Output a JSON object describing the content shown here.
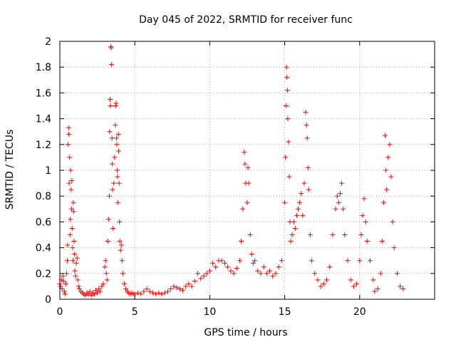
{
  "chart_data": {
    "type": "scatter",
    "title": "Day 045 of 2022, SRMTID for receiver func",
    "xlabel": "GPS time / hours",
    "ylabel": "SRMTID / TECUs",
    "xlim": [
      0,
      25
    ],
    "ylim": [
      0,
      2
    ],
    "xticks": [
      0,
      5,
      10,
      15,
      20
    ],
    "xtick_labels": [
      "0",
      "5",
      "10",
      "15",
      "20"
    ],
    "yticks": [
      0,
      0.2,
      0.4,
      0.6,
      0.8,
      1,
      1.2,
      1.4,
      1.6,
      1.8,
      2
    ],
    "ytick_labels": [
      "0",
      "0.2",
      "0.4",
      "0.6",
      "0.8",
      "1",
      "1.2",
      "1.4",
      "1.6",
      "1.8",
      "2"
    ],
    "grid": true,
    "marker": "+",
    "color": "#ff0000",
    "series": [
      {
        "name": "SRMTID",
        "points": [
          [
            0.0,
            0.12
          ],
          [
            0.05,
            0.1
          ],
          [
            0.1,
            0.15
          ],
          [
            0.15,
            0.08
          ],
          [
            0.2,
            0.18
          ],
          [
            0.25,
            0.14
          ],
          [
            0.3,
            0.06
          ],
          [
            0.35,
            0.04
          ],
          [
            0.4,
            0.12
          ],
          [
            0.45,
            0.2
          ],
          [
            0.5,
            0.3
          ],
          [
            0.52,
            0.42
          ],
          [
            0.55,
            1.2
          ],
          [
            0.58,
            1.33
          ],
          [
            0.6,
            1.28
          ],
          [
            0.62,
            0.9
          ],
          [
            0.65,
            1.1
          ],
          [
            0.68,
            0.5
          ],
          [
            0.7,
            0.62
          ],
          [
            0.72,
            1.0
          ],
          [
            0.75,
            0.85
          ],
          [
            0.78,
            0.7
          ],
          [
            0.8,
            0.92
          ],
          [
            0.82,
            0.55
          ],
          [
            0.85,
            0.4
          ],
          [
            0.88,
            0.3
          ],
          [
            0.9,
            0.75
          ],
          [
            0.92,
            0.68
          ],
          [
            0.95,
            0.45
          ],
          [
            0.98,
            0.35
          ],
          [
            1.0,
            0.22
          ],
          [
            1.05,
            0.18
          ],
          [
            1.1,
            0.28
          ],
          [
            1.15,
            0.32
          ],
          [
            1.2,
            0.15
          ],
          [
            1.25,
            0.1
          ],
          [
            1.3,
            0.08
          ],
          [
            1.4,
            0.06
          ],
          [
            1.5,
            0.05
          ],
          [
            1.6,
            0.04
          ],
          [
            1.7,
            0.03
          ],
          [
            1.8,
            0.05
          ],
          [
            1.9,
            0.04
          ],
          [
            2.0,
            0.06
          ],
          [
            2.1,
            0.03
          ],
          [
            2.2,
            0.05
          ],
          [
            2.3,
            0.04
          ],
          [
            2.4,
            0.07
          ],
          [
            2.5,
            0.05
          ],
          [
            2.6,
            0.08
          ],
          [
            2.7,
            0.06
          ],
          [
            2.8,
            0.1
          ],
          [
            2.9,
            0.12
          ],
          [
            3.0,
            0.25
          ],
          [
            3.05,
            0.3
          ],
          [
            3.1,
            0.2
          ],
          [
            3.15,
            0.15
          ],
          [
            3.2,
            0.45
          ],
          [
            3.25,
            0.62
          ],
          [
            3.3,
            0.8
          ],
          [
            3.32,
            1.3
          ],
          [
            3.35,
            1.55
          ],
          [
            3.38,
            1.5
          ],
          [
            3.4,
            1.96
          ],
          [
            3.42,
            1.95
          ],
          [
            3.45,
            1.82
          ],
          [
            3.48,
            1.25
          ],
          [
            3.5,
            1.05
          ],
          [
            3.52,
            0.85
          ],
          [
            3.55,
            0.55
          ],
          [
            3.6,
            0.9
          ],
          [
            3.65,
            1.1
          ],
          [
            3.7,
            1.35
          ],
          [
            3.72,
            1.5
          ],
          [
            3.75,
            1.52
          ],
          [
            3.78,
            1.25
          ],
          [
            3.8,
            1.2
          ],
          [
            3.82,
            1.0
          ],
          [
            3.85,
            0.95
          ],
          [
            3.88,
            0.75
          ],
          [
            3.9,
            1.28
          ],
          [
            3.92,
            1.15
          ],
          [
            3.95,
            0.9
          ],
          [
            3.98,
            0.6
          ],
          [
            4.0,
            0.45
          ],
          [
            4.05,
            0.38
          ],
          [
            4.1,
            0.42
          ],
          [
            4.15,
            0.3
          ],
          [
            4.2,
            0.2
          ],
          [
            4.3,
            0.12
          ],
          [
            4.4,
            0.08
          ],
          [
            4.5,
            0.06
          ],
          [
            4.6,
            0.05
          ],
          [
            4.7,
            0.04
          ],
          [
            4.8,
            0.05
          ],
          [
            4.9,
            0.04
          ],
          [
            5.0,
            0.04
          ],
          [
            5.2,
            0.05
          ],
          [
            5.4,
            0.04
          ],
          [
            5.6,
            0.06
          ],
          [
            5.8,
            0.08
          ],
          [
            6.0,
            0.06
          ],
          [
            6.2,
            0.05
          ],
          [
            6.4,
            0.04
          ],
          [
            6.6,
            0.05
          ],
          [
            6.8,
            0.04
          ],
          [
            7.0,
            0.05
          ],
          [
            7.2,
            0.06
          ],
          [
            7.4,
            0.08
          ],
          [
            7.6,
            0.1
          ],
          [
            7.8,
            0.09
          ],
          [
            8.0,
            0.08
          ],
          [
            8.2,
            0.07
          ],
          [
            8.4,
            0.1
          ],
          [
            8.6,
            0.12
          ],
          [
            8.8,
            0.1
          ],
          [
            9.0,
            0.14
          ],
          [
            9.2,
            0.2
          ],
          [
            9.4,
            0.16
          ],
          [
            9.6,
            0.18
          ],
          [
            9.8,
            0.2
          ],
          [
            10.0,
            0.22
          ],
          [
            10.2,
            0.28
          ],
          [
            10.4,
            0.25
          ],
          [
            10.6,
            0.3
          ],
          [
            10.8,
            0.3
          ],
          [
            11.0,
            0.28
          ],
          [
            11.2,
            0.25
          ],
          [
            11.4,
            0.22
          ],
          [
            11.6,
            0.2
          ],
          [
            11.8,
            0.24
          ],
          [
            12.0,
            0.3
          ],
          [
            12.1,
            0.45
          ],
          [
            12.2,
            0.7
          ],
          [
            12.3,
            1.14
          ],
          [
            12.35,
            1.05
          ],
          [
            12.4,
            0.9
          ],
          [
            12.5,
            0.75
          ],
          [
            12.55,
            1.02
          ],
          [
            12.6,
            0.9
          ],
          [
            12.7,
            0.5
          ],
          [
            12.8,
            0.35
          ],
          [
            12.9,
            0.28
          ],
          [
            13.0,
            0.3
          ],
          [
            13.2,
            0.22
          ],
          [
            13.4,
            0.2
          ],
          [
            13.6,
            0.25
          ],
          [
            13.8,
            0.2
          ],
          [
            14.0,
            0.22
          ],
          [
            14.2,
            0.18
          ],
          [
            14.4,
            0.2
          ],
          [
            14.6,
            0.25
          ],
          [
            14.8,
            0.3
          ],
          [
            15.0,
            0.75
          ],
          [
            15.05,
            1.1
          ],
          [
            15.1,
            1.5
          ],
          [
            15.12,
            1.8
          ],
          [
            15.15,
            1.72
          ],
          [
            15.18,
            1.62
          ],
          [
            15.2,
            1.4
          ],
          [
            15.25,
            1.22
          ],
          [
            15.3,
            0.95
          ],
          [
            15.35,
            0.6
          ],
          [
            15.4,
            0.45
          ],
          [
            15.5,
            0.5
          ],
          [
            15.6,
            0.6
          ],
          [
            15.7,
            0.55
          ],
          [
            15.8,
            0.65
          ],
          [
            15.9,
            0.7
          ],
          [
            16.0,
            0.75
          ],
          [
            16.1,
            0.82
          ],
          [
            16.2,
            0.65
          ],
          [
            16.3,
            0.9
          ],
          [
            16.4,
            1.45
          ],
          [
            16.45,
            1.35
          ],
          [
            16.5,
            1.25
          ],
          [
            16.55,
            1.02
          ],
          [
            16.6,
            0.85
          ],
          [
            16.7,
            0.5
          ],
          [
            16.8,
            0.3
          ],
          [
            17.0,
            0.2
          ],
          [
            17.2,
            0.15
          ],
          [
            17.4,
            0.1
          ],
          [
            17.6,
            0.12
          ],
          [
            17.8,
            0.15
          ],
          [
            18.0,
            0.25
          ],
          [
            18.2,
            0.5
          ],
          [
            18.4,
            0.7
          ],
          [
            18.5,
            0.8
          ],
          [
            18.6,
            0.75
          ],
          [
            18.7,
            0.82
          ],
          [
            18.8,
            0.9
          ],
          [
            18.9,
            0.7
          ],
          [
            19.0,
            0.5
          ],
          [
            19.2,
            0.3
          ],
          [
            19.4,
            0.15
          ],
          [
            19.6,
            0.1
          ],
          [
            19.8,
            0.12
          ],
          [
            20.0,
            0.3
          ],
          [
            20.1,
            0.5
          ],
          [
            20.2,
            0.65
          ],
          [
            20.3,
            0.78
          ],
          [
            20.4,
            0.6
          ],
          [
            20.5,
            0.45
          ],
          [
            20.7,
            0.3
          ],
          [
            20.9,
            0.15
          ],
          [
            21.0,
            0.06
          ],
          [
            21.2,
            0.08
          ],
          [
            21.4,
            0.2
          ],
          [
            21.5,
            0.45
          ],
          [
            21.6,
            0.75
          ],
          [
            21.7,
            1.27
          ],
          [
            21.75,
            1.0
          ],
          [
            21.8,
            0.85
          ],
          [
            21.9,
            1.1
          ],
          [
            22.0,
            1.2
          ],
          [
            22.1,
            0.95
          ],
          [
            22.2,
            0.6
          ],
          [
            22.3,
            0.4
          ],
          [
            22.5,
            0.2
          ],
          [
            22.7,
            0.1
          ],
          [
            22.9,
            0.08
          ]
        ]
      }
    ]
  }
}
